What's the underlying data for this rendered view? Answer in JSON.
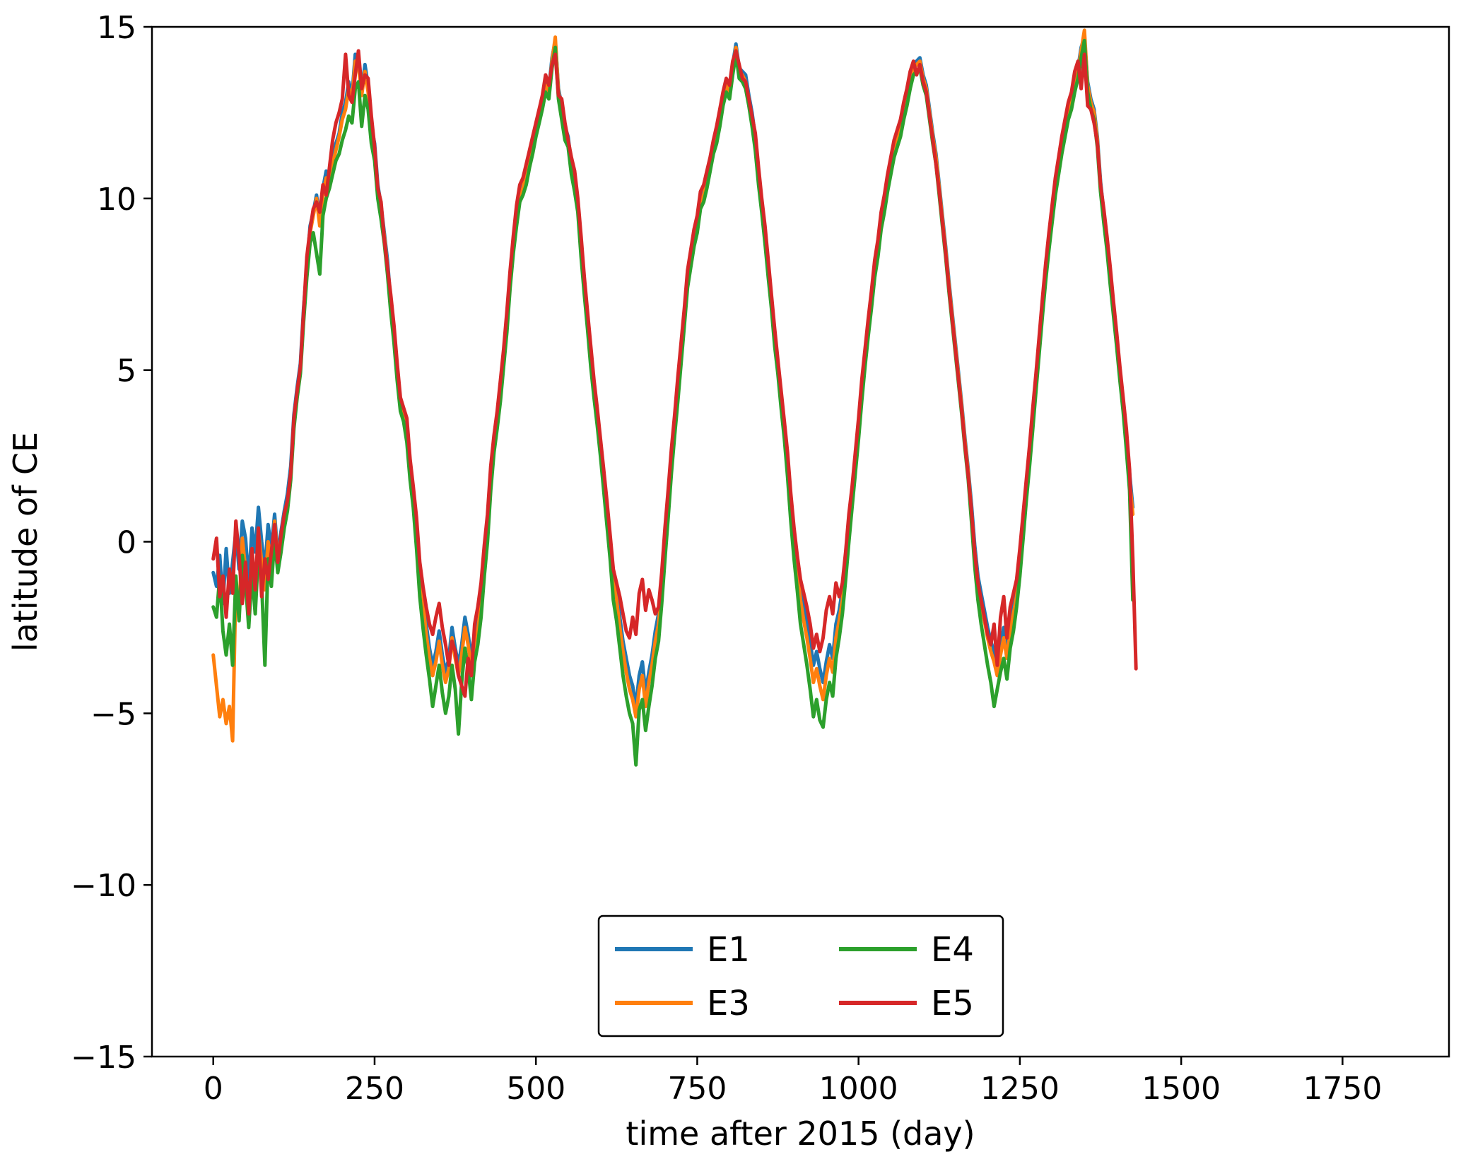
{
  "chart_data": {
    "type": "line",
    "title": "",
    "xlabel": "time after 2015 (day)",
    "ylabel": "latitude of CE",
    "xlim": [
      -95,
      1915
    ],
    "ylim": [
      -15,
      15
    ],
    "x_ticks": [
      0,
      250,
      500,
      750,
      1000,
      1250,
      1500,
      1750
    ],
    "y_ticks": [
      -15,
      -10,
      -5,
      0,
      5,
      10,
      15
    ],
    "x_tick_labels": [
      "0",
      "250",
      "500",
      "750",
      "1000",
      "1250",
      "1500",
      "1750"
    ],
    "y_tick_labels": [
      "−15",
      "−10",
      "−5",
      "0",
      "5",
      "10",
      "15"
    ],
    "grid": false,
    "legend": {
      "placement": "lower center",
      "columns": 2
    },
    "x_step_days": 5,
    "series": [
      {
        "name": "E1",
        "color": "#1f77b4",
        "x_start": 0,
        "values": [
          -0.9,
          -1.3,
          -0.4,
          -1.8,
          -0.2,
          -1.5,
          -0.6,
          0.3,
          -0.8,
          0.6,
          0.1,
          -1.2,
          0.4,
          -0.3,
          1.0,
          0.0,
          -0.8,
          0.5,
          -0.2,
          0.8,
          -0.4,
          0.3,
          0.9,
          1.4,
          2.2,
          3.7,
          4.5,
          5.2,
          6.8,
          8.0,
          9.2,
          9.6,
          10.1,
          9.4,
          10.3,
          10.8,
          10.5,
          11.1,
          11.6,
          11.9,
          12.5,
          12.8,
          13.4,
          13.0,
          14.2,
          14.0,
          13.1,
          13.9,
          13.3,
          12.1,
          11.6,
          10.4,
          9.8,
          9.0,
          8.2,
          7.0,
          6.1,
          5.0,
          4.1,
          3.8,
          3.2,
          2.2,
          1.4,
          0.5,
          -0.9,
          -1.6,
          -2.4,
          -3.1,
          -3.6,
          -3.2,
          -2.6,
          -3.3,
          -3.8,
          -3.4,
          -2.5,
          -3.1,
          -3.6,
          -3.0,
          -2.2,
          -2.7,
          -3.4,
          -2.6,
          -2.3,
          -1.5,
          -0.4,
          0.6,
          2.0,
          3.0,
          3.6,
          4.5,
          5.5,
          6.5,
          7.8,
          8.8,
          9.6,
          10.3,
          10.4,
          10.8,
          11.2,
          11.6,
          12.1,
          12.5,
          12.9,
          13.4,
          13.2,
          14.1,
          14.6,
          13.2,
          12.7,
          12.1,
          11.8,
          11.0,
          10.6,
          9.9,
          8.7,
          7.5,
          6.5,
          5.5,
          4.6,
          3.8,
          2.9,
          2.0,
          1.1,
          0.1,
          -1.0,
          -1.5,
          -2.2,
          -2.9,
          -3.4,
          -3.9,
          -4.2,
          -4.8,
          -3.9,
          -3.5,
          -4.4,
          -3.8,
          -3.3,
          -2.6,
          -2.1,
          -1.1,
          0.2,
          1.3,
          2.5,
          3.6,
          4.6,
          5.6,
          6.6,
          7.7,
          8.3,
          8.9,
          9.3,
          10.0,
          10.2,
          10.6,
          11.1,
          11.6,
          11.9,
          12.4,
          13.0,
          13.4,
          13.2,
          13.9,
          14.5,
          13.8,
          13.7,
          13.6,
          13.0,
          12.5,
          11.8,
          10.8,
          9.9,
          9.1,
          8.1,
          7.1,
          6.1,
          5.2,
          4.3,
          3.4,
          2.4,
          1.2,
          0.2,
          -0.6,
          -1.4,
          -1.9,
          -2.3,
          -2.9,
          -3.6,
          -3.2,
          -3.7,
          -4.1,
          -3.5,
          -3.0,
          -3.4,
          -2.4,
          -2.0,
          -1.4,
          -0.5,
          0.6,
          1.4,
          2.4,
          3.4,
          4.5,
          5.4,
          6.3,
          7.1,
          8.0,
          8.6,
          9.4,
          9.9,
          10.5,
          11.0,
          11.5,
          11.8,
          12.1,
          12.6,
          13.0,
          13.5,
          13.9,
          14.0,
          14.1,
          13.6,
          13.3,
          12.6,
          11.9,
          11.3,
          10.4,
          9.5,
          8.6,
          7.6,
          6.7,
          5.8,
          4.9,
          4.0,
          3.0,
          2.1,
          1.1,
          -0.1,
          -1.0,
          -1.5,
          -2.0,
          -2.5,
          -2.9,
          -3.2,
          -3.6,
          -3.0,
          -2.5,
          -3.1,
          -2.3,
          -1.8,
          -1.3,
          -0.4,
          0.6,
          1.6,
          2.6,
          3.7,
          4.7,
          5.8,
          6.9,
          7.9,
          8.8,
          9.6,
          10.4,
          11.0,
          11.6,
          12.1,
          12.6,
          12.9,
          13.4,
          13.8,
          14.4,
          14.7,
          13.4,
          12.9,
          12.6,
          11.8,
          10.5,
          9.6,
          8.8,
          7.8,
          6.9,
          6.0,
          5.0,
          4.1,
          3.1,
          2.0,
          1.0
        ]
      },
      {
        "name": "E3",
        "color": "#ff7f0e",
        "x_start": 0,
        "values": [
          -3.3,
          -4.2,
          -5.1,
          -4.6,
          -5.3,
          -4.8,
          -5.8,
          -1.2,
          -2.1,
          0.1,
          -0.8,
          -2.0,
          -0.5,
          -1.6,
          0.3,
          -0.6,
          -1.4,
          0.0,
          -0.7,
          0.6,
          -0.5,
          0.1,
          0.7,
          1.1,
          2.0,
          3.4,
          4.3,
          5.0,
          6.6,
          7.8,
          9.0,
          9.5,
          10.0,
          9.2,
          10.1,
          10.6,
          10.4,
          11.0,
          11.4,
          11.8,
          12.3,
          12.6,
          13.2,
          12.9,
          14.0,
          13.9,
          13.0,
          13.7,
          13.1,
          11.9,
          11.4,
          10.2,
          9.7,
          8.9,
          8.0,
          6.9,
          6.0,
          4.9,
          4.0,
          3.7,
          3.1,
          2.0,
          1.3,
          0.3,
          -1.1,
          -1.8,
          -2.7,
          -3.4,
          -3.9,
          -3.5,
          -2.9,
          -3.6,
          -4.1,
          -3.7,
          -2.8,
          -3.4,
          -3.9,
          -3.3,
          -2.5,
          -3.0,
          -3.7,
          -2.9,
          -2.6,
          -1.8,
          -0.7,
          0.3,
          1.7,
          2.8,
          3.4,
          4.3,
          5.3,
          6.3,
          7.6,
          8.6,
          9.4,
          10.1,
          10.3,
          10.7,
          11.1,
          11.5,
          12.0,
          12.4,
          12.8,
          13.3,
          13.1,
          14.0,
          14.7,
          13.1,
          12.5,
          11.9,
          11.7,
          10.9,
          10.4,
          9.8,
          8.5,
          7.4,
          6.4,
          5.3,
          4.4,
          3.6,
          2.7,
          1.8,
          0.9,
          -0.1,
          -1.2,
          -1.7,
          -2.5,
          -3.2,
          -3.8,
          -4.3,
          -4.6,
          -5.1,
          -4.3,
          -3.9,
          -4.8,
          -4.1,
          -3.6,
          -2.9,
          -2.4,
          -1.4,
          -0.1,
          1.0,
          2.3,
          3.4,
          4.4,
          5.5,
          6.5,
          7.6,
          8.2,
          8.8,
          9.2,
          9.9,
          10.1,
          10.5,
          11.0,
          11.5,
          11.8,
          12.3,
          12.9,
          13.3,
          13.1,
          13.8,
          14.4,
          13.7,
          13.6,
          13.4,
          12.9,
          12.3,
          11.6,
          10.6,
          9.8,
          8.9,
          8.0,
          7.0,
          6.0,
          5.1,
          4.2,
          3.3,
          2.2,
          1.0,
          0.0,
          -0.9,
          -1.7,
          -2.3,
          -2.8,
          -3.4,
          -4.1,
          -3.7,
          -4.2,
          -4.6,
          -3.9,
          -3.4,
          -3.8,
          -2.8,
          -2.3,
          -1.7,
          -0.8,
          0.3,
          1.2,
          2.2,
          3.2,
          4.3,
          5.3,
          6.2,
          7.0,
          7.9,
          8.5,
          9.3,
          9.8,
          10.4,
          10.9,
          11.4,
          11.7,
          12.0,
          12.5,
          12.9,
          13.4,
          13.8,
          13.9,
          14.0,
          13.5,
          13.2,
          12.5,
          11.8,
          11.2,
          10.3,
          9.4,
          8.5,
          7.5,
          6.6,
          5.7,
          4.8,
          3.9,
          2.9,
          2.0,
          0.9,
          -0.3,
          -1.2,
          -1.8,
          -2.3,
          -2.8,
          -3.2,
          -3.5,
          -3.9,
          -3.3,
          -2.8,
          -3.4,
          -2.6,
          -2.1,
          -1.6,
          -0.7,
          0.3,
          1.4,
          2.4,
          3.5,
          4.6,
          5.7,
          6.8,
          7.8,
          8.7,
          9.5,
          10.3,
          10.9,
          11.5,
          12.0,
          12.5,
          12.8,
          13.3,
          13.7,
          14.3,
          14.9,
          13.3,
          12.8,
          12.5,
          11.7,
          10.4,
          9.5,
          8.7,
          7.7,
          6.8,
          5.9,
          4.9,
          4.0,
          3.0,
          1.8,
          0.8
        ]
      },
      {
        "name": "E4",
        "color": "#2ca02c",
        "x_start": 0,
        "values": [
          -1.9,
          -2.2,
          -1.0,
          -2.6,
          -3.3,
          -2.4,
          -3.6,
          -1.0,
          -2.3,
          -0.4,
          -1.2,
          -2.5,
          -0.9,
          -2.1,
          -0.3,
          -1.2,
          -3.6,
          -0.5,
          -1.3,
          0.1,
          -0.9,
          -0.3,
          0.4,
          0.9,
          1.8,
          3.3,
          4.2,
          4.9,
          6.4,
          7.7,
          8.7,
          9.0,
          8.4,
          7.8,
          9.5,
          10.0,
          10.3,
          10.7,
          11.1,
          11.3,
          11.7,
          12.0,
          12.4,
          12.2,
          13.2,
          13.4,
          12.1,
          13.0,
          12.6,
          11.6,
          11.1,
          10.0,
          9.4,
          8.7,
          7.8,
          6.7,
          5.8,
          4.7,
          3.8,
          3.5,
          2.9,
          1.8,
          1.0,
          -0.2,
          -1.6,
          -2.5,
          -3.3,
          -4.0,
          -4.8,
          -4.2,
          -3.6,
          -4.4,
          -5.0,
          -4.5,
          -3.6,
          -4.3,
          -5.6,
          -4.1,
          -3.1,
          -3.7,
          -4.6,
          -3.5,
          -3.0,
          -2.2,
          -1.0,
          0.0,
          1.5,
          2.6,
          3.3,
          4.1,
          5.1,
          6.1,
          7.4,
          8.4,
          9.2,
          9.9,
          10.1,
          10.4,
          10.9,
          11.3,
          11.8,
          12.2,
          12.6,
          13.1,
          12.9,
          13.8,
          14.4,
          12.9,
          12.3,
          11.7,
          11.5,
          10.7,
          10.2,
          9.6,
          8.3,
          7.2,
          6.2,
          5.1,
          4.2,
          3.4,
          2.5,
          1.5,
          0.5,
          -0.5,
          -1.7,
          -2.3,
          -3.1,
          -3.9,
          -4.5,
          -5.0,
          -5.3,
          -6.5,
          -4.9,
          -4.6,
          -5.5,
          -4.8,
          -4.2,
          -3.4,
          -2.9,
          -1.8,
          -0.5,
          0.7,
          2.0,
          3.1,
          4.1,
          5.2,
          6.3,
          7.4,
          8.0,
          8.6,
          9.0,
          9.7,
          9.9,
          10.3,
          10.8,
          11.3,
          11.6,
          12.1,
          12.7,
          13.1,
          12.9,
          13.6,
          14.2,
          13.5,
          13.4,
          13.2,
          12.7,
          12.1,
          11.4,
          10.4,
          9.6,
          8.7,
          7.7,
          6.8,
          5.7,
          4.9,
          3.9,
          3.0,
          1.9,
          0.6,
          -0.5,
          -1.4,
          -2.4,
          -3.0,
          -3.6,
          -4.3,
          -5.1,
          -4.6,
          -5.2,
          -5.4,
          -4.6,
          -4.1,
          -4.5,
          -3.4,
          -2.8,
          -2.1,
          -1.1,
          0.0,
          1.0,
          2.0,
          3.0,
          4.1,
          5.1,
          6.0,
          6.8,
          7.7,
          8.3,
          9.1,
          9.6,
          10.2,
          10.7,
          11.2,
          11.5,
          11.8,
          12.3,
          12.7,
          13.2,
          13.6,
          13.7,
          13.8,
          13.3,
          13.0,
          12.3,
          11.6,
          11.0,
          10.1,
          9.2,
          8.3,
          7.3,
          6.4,
          5.5,
          4.6,
          3.7,
          2.7,
          1.8,
          0.6,
          -0.7,
          -1.7,
          -2.4,
          -3.0,
          -3.6,
          -4.1,
          -4.8,
          -4.3,
          -3.8,
          -3.4,
          -4.0,
          -3.1,
          -2.6,
          -1.9,
          -1.0,
          0.1,
          1.2,
          2.2,
          3.3,
          4.4,
          5.5,
          6.6,
          7.6,
          8.5,
          9.3,
          10.1,
          10.7,
          11.3,
          11.8,
          12.3,
          12.6,
          13.1,
          13.5,
          14.1,
          14.6,
          13.1,
          12.6,
          12.3,
          11.5,
          10.2,
          9.3,
          8.5,
          7.5,
          6.6,
          5.7,
          4.7,
          3.8,
          2.7,
          1.5,
          -1.7
        ]
      },
      {
        "name": "E5",
        "color": "#d62728",
        "x_start": 0,
        "values": [
          -0.5,
          0.1,
          -1.6,
          -1.0,
          -2.2,
          -0.8,
          -1.5,
          0.6,
          -0.4,
          -1.8,
          -0.6,
          -2.1,
          -0.2,
          -1.4,
          0.4,
          -1.6,
          -0.5,
          -1.1,
          -0.3,
          0.5,
          -0.6,
          0.2,
          0.8,
          1.2,
          2.0,
          3.6,
          4.4,
          5.1,
          6.7,
          8.3,
          9.1,
          9.7,
          9.9,
          9.6,
          10.4,
          10.1,
          10.9,
          11.7,
          12.2,
          12.5,
          12.9,
          14.2,
          13.0,
          12.8,
          13.6,
          14.3,
          13.2,
          13.6,
          13.5,
          12.4,
          11.5,
          10.3,
          9.9,
          8.8,
          8.0,
          7.2,
          6.3,
          5.2,
          4.2,
          3.9,
          3.6,
          2.4,
          1.6,
          0.7,
          -0.6,
          -1.3,
          -1.9,
          -2.4,
          -2.7,
          -2.2,
          -1.8,
          -2.5,
          -3.0,
          -3.6,
          -2.9,
          -3.2,
          -3.9,
          -4.2,
          -4.5,
          -3.4,
          -3.9,
          -2.4,
          -1.9,
          -1.2,
          -0.1,
          0.8,
          2.2,
          3.1,
          3.8,
          4.7,
          5.6,
          6.7,
          7.9,
          8.9,
          9.8,
          10.4,
          10.6,
          11.0,
          11.4,
          11.8,
          12.2,
          12.6,
          13.0,
          13.6,
          13.3,
          13.9,
          14.2,
          13.0,
          12.9,
          12.2,
          11.7,
          11.2,
          10.8,
          10.0,
          8.9,
          7.7,
          6.7,
          5.7,
          4.7,
          3.9,
          3.0,
          2.1,
          1.2,
          0.2,
          -0.8,
          -1.2,
          -1.6,
          -2.1,
          -2.6,
          -2.8,
          -2.2,
          -2.7,
          -1.5,
          -1.1,
          -2.0,
          -1.4,
          -1.7,
          -2.1,
          -1.9,
          -0.9,
          0.4,
          1.5,
          2.7,
          3.7,
          4.8,
          5.8,
          6.8,
          7.9,
          8.5,
          9.1,
          9.5,
          10.2,
          10.4,
          10.8,
          11.2,
          11.7,
          12.1,
          12.6,
          13.1,
          13.5,
          13.3,
          14.0,
          14.3,
          13.9,
          13.5,
          13.4,
          12.9,
          12.4,
          11.9,
          10.9,
          10.0,
          9.2,
          8.2,
          7.2,
          6.2,
          5.3,
          4.4,
          3.5,
          2.6,
          1.4,
          0.4,
          -0.4,
          -1.1,
          -1.5,
          -1.9,
          -2.4,
          -3.1,
          -2.7,
          -3.2,
          -2.8,
          -2.0,
          -1.6,
          -2.1,
          -1.2,
          -1.6,
          -1.2,
          -0.3,
          0.8,
          1.6,
          2.6,
          3.6,
          4.7,
          5.6,
          6.5,
          7.3,
          8.2,
          8.8,
          9.6,
          10.1,
          10.7,
          11.2,
          11.7,
          12.0,
          12.3,
          12.8,
          13.2,
          13.7,
          14.0,
          13.6,
          13.9,
          13.4,
          13.1,
          12.4,
          11.7,
          11.0,
          10.2,
          9.3,
          8.4,
          7.4,
          6.5,
          5.6,
          4.7,
          3.8,
          2.8,
          1.9,
          0.9,
          -0.3,
          -1.2,
          -1.7,
          -2.2,
          -2.7,
          -3.0,
          -2.4,
          -3.6,
          -2.2,
          -1.6,
          -2.8,
          -1.9,
          -1.5,
          -1.1,
          -0.2,
          0.8,
          1.8,
          2.8,
          3.9,
          4.9,
          6.0,
          7.1,
          8.1,
          9.0,
          9.8,
          10.6,
          11.2,
          11.8,
          12.3,
          12.8,
          13.1,
          13.7,
          14.0,
          13.2,
          14.2,
          12.7,
          12.6,
          12.2,
          11.6,
          10.4,
          9.7,
          8.9,
          8.0,
          7.0,
          6.1,
          5.1,
          4.2,
          3.3,
          2.1,
          -0.5,
          -3.7
        ]
      }
    ]
  }
}
